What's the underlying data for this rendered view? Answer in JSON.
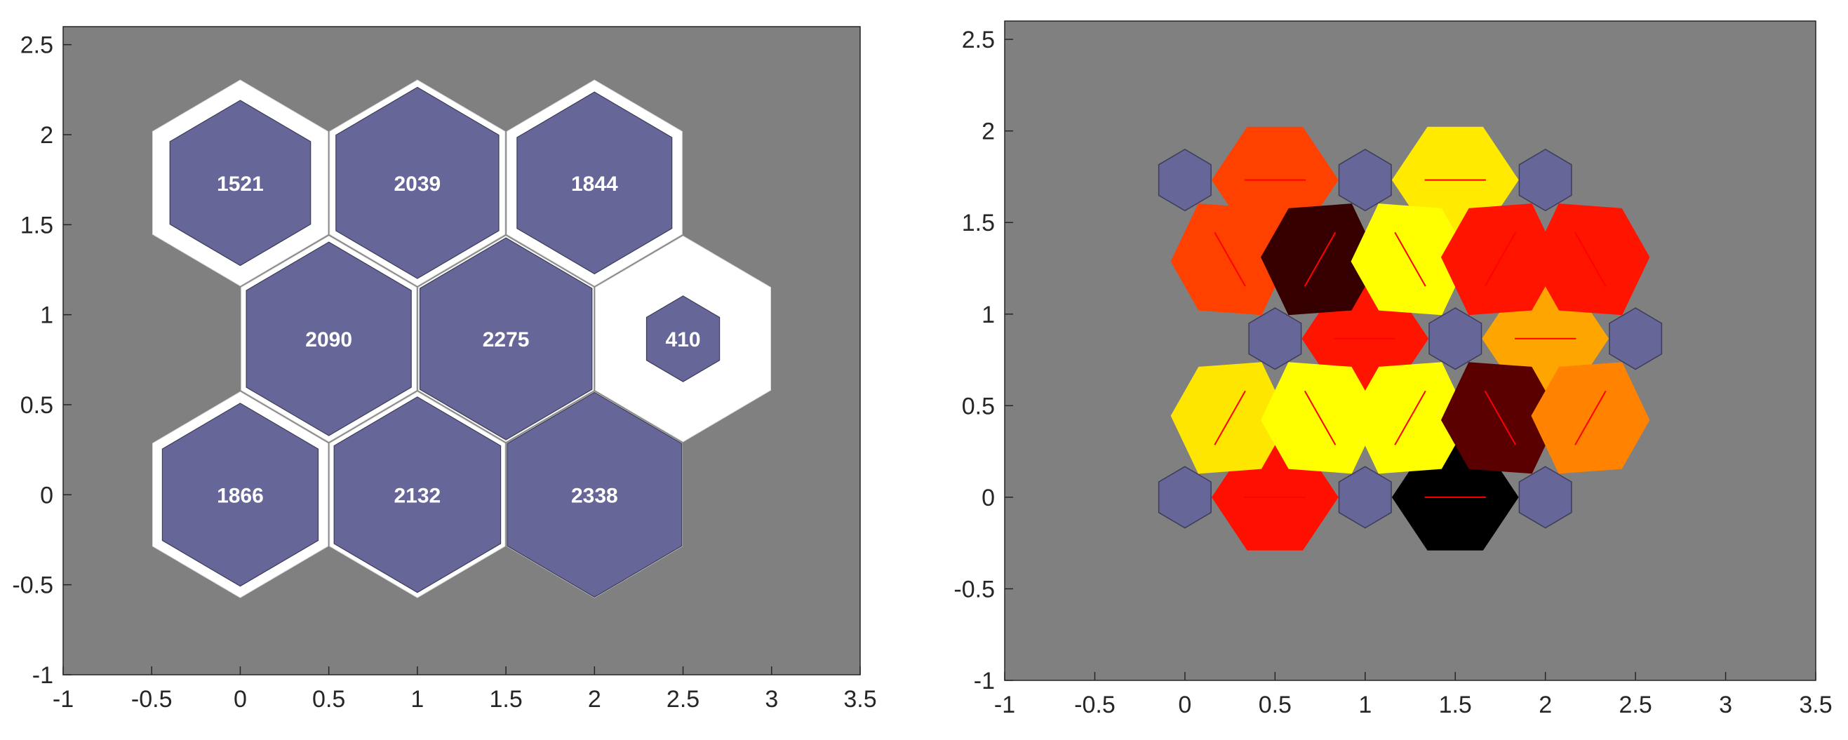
{
  "colors": {
    "plot_bg": "#808080",
    "neuron": "#666699",
    "neuron_edge": "#3c3c5a",
    "weight_line": "#ff0000",
    "axis": "#262626"
  },
  "chart_data": [
    {
      "type": "heatmap",
      "subtype": "som-sample-hits",
      "title": "",
      "xlabel": "",
      "ylabel": "",
      "xlim": [
        -1,
        3.5
      ],
      "ylim": [
        -1,
        2.6
      ],
      "xticks": [
        "-1",
        "-0.5",
        "0",
        "0.5",
        "1",
        "1.5",
        "2",
        "2.5",
        "3",
        "3.5"
      ],
      "yticks": [
        "-1",
        "-0.5",
        "0",
        "0.5",
        "1",
        "1.5",
        "2",
        "2.5"
      ],
      "neurons": [
        {
          "x": 0,
          "y": 0,
          "hits": "1866"
        },
        {
          "x": 1,
          "y": 0,
          "hits": "2132"
        },
        {
          "x": 2,
          "y": 0,
          "hits": "2338"
        },
        {
          "x": 0.5,
          "y": 0.866,
          "hits": "2090"
        },
        {
          "x": 1.5,
          "y": 0.866,
          "hits": "2275"
        },
        {
          "x": 2.5,
          "y": 0.866,
          "hits": "410"
        },
        {
          "x": 0,
          "y": 1.732,
          "hits": "1521"
        },
        {
          "x": 1,
          "y": 1.732,
          "hits": "2039"
        },
        {
          "x": 2,
          "y": 1.732,
          "hits": "1844"
        }
      ],
      "max_hits": 2338
    },
    {
      "type": "heatmap",
      "subtype": "som-neighbor-distances",
      "title": "",
      "xlabel": "",
      "ylabel": "",
      "xlim": [
        -1,
        3.5
      ],
      "ylim": [
        -1,
        2.6
      ],
      "xticks": [
        "-1",
        "-0.5",
        "0",
        "0.5",
        "1",
        "1.5",
        "2",
        "2.5",
        "3",
        "3.5"
      ],
      "yticks": [
        "-1",
        "-0.5",
        "0",
        "0.5",
        "1",
        "1.5",
        "2",
        "2.5"
      ],
      "neurons": [
        {
          "x": 0,
          "y": 0
        },
        {
          "x": 1,
          "y": 0
        },
        {
          "x": 2,
          "y": 0
        },
        {
          "x": 0.5,
          "y": 0.866
        },
        {
          "x": 1.5,
          "y": 0.866
        },
        {
          "x": 2.5,
          "y": 0.866
        },
        {
          "x": 0,
          "y": 1.732
        },
        {
          "x": 1,
          "y": 1.732
        },
        {
          "x": 2,
          "y": 1.732
        }
      ],
      "connections": [
        {
          "from": [
            0,
            0
          ],
          "to": [
            1,
            0
          ],
          "color": "#ff0f00"
        },
        {
          "from": [
            1,
            0
          ],
          "to": [
            2,
            0
          ],
          "color": "#000000"
        },
        {
          "from": [
            0.5,
            0.866
          ],
          "to": [
            1.5,
            0.866
          ],
          "color": "#ff1400"
        },
        {
          "from": [
            1.5,
            0.866
          ],
          "to": [
            2.5,
            0.866
          ],
          "color": "#ffa500"
        },
        {
          "from": [
            0,
            1.732
          ],
          "to": [
            1,
            1.732
          ],
          "color": "#ff4100"
        },
        {
          "from": [
            1,
            1.732
          ],
          "to": [
            2,
            1.732
          ],
          "color": "#ffea00"
        },
        {
          "from": [
            0,
            0
          ],
          "to": [
            0.5,
            0.866
          ],
          "color": "#ffe600"
        },
        {
          "from": [
            1,
            0
          ],
          "to": [
            0.5,
            0.866
          ],
          "color": "#ffff00"
        },
        {
          "from": [
            1,
            0
          ],
          "to": [
            1.5,
            0.866
          ],
          "color": "#ffff00"
        },
        {
          "from": [
            2,
            0
          ],
          "to": [
            1.5,
            0.866
          ],
          "color": "#5a0000"
        },
        {
          "from": [
            2,
            0
          ],
          "to": [
            2.5,
            0.866
          ],
          "color": "#ff8200"
        },
        {
          "from": [
            0.5,
            0.866
          ],
          "to": [
            0,
            1.732
          ],
          "color": "#ff4100"
        },
        {
          "from": [
            0.5,
            0.866
          ],
          "to": [
            1,
            1.732
          ],
          "color": "#370000"
        },
        {
          "from": [
            1.5,
            0.866
          ],
          "to": [
            1,
            1.732
          ],
          "color": "#ffff00"
        },
        {
          "from": [
            1.5,
            0.866
          ],
          "to": [
            2,
            1.732
          ],
          "color": "#ff1400"
        },
        {
          "from": [
            2.5,
            0.866
          ],
          "to": [
            2,
            1.732
          ],
          "color": "#ff1400"
        }
      ]
    }
  ]
}
